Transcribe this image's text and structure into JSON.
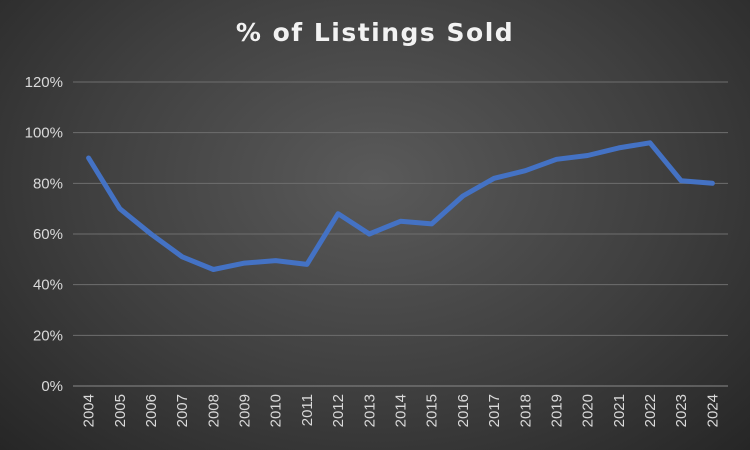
{
  "chart_data": {
    "type": "line",
    "title": "% of Listings Sold",
    "xlabel": "",
    "ylabel": "",
    "categories": [
      "2004",
      "2005",
      "2006",
      "2007",
      "2008",
      "2009",
      "2010",
      "2011",
      "2012",
      "2013",
      "2014",
      "2015",
      "2016",
      "2017",
      "2018",
      "2019",
      "2020",
      "2021",
      "2022",
      "2023",
      "2024"
    ],
    "series": [
      {
        "values": [
          90,
          70,
          60,
          51,
          46,
          48.5,
          49.5,
          48,
          68,
          60,
          65,
          64,
          75,
          82,
          85,
          89.5,
          91,
          94,
          96,
          81,
          80
        ]
      }
    ],
    "ylim": [
      0,
      120
    ],
    "y_ticks": [
      "0%",
      "20%",
      "40%",
      "60%",
      "80%",
      "100%",
      "120%"
    ],
    "y_tick_values": [
      0,
      20,
      40,
      60,
      80,
      100,
      120
    ],
    "grid": true,
    "legend": "none",
    "colors": {
      "series": "#4472c4",
      "background": "#404040",
      "text": "#d9d9d9"
    }
  }
}
